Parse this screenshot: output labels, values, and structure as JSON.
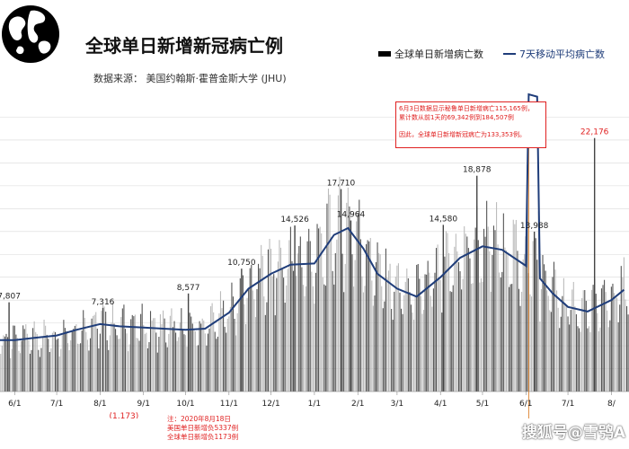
{
  "header": {
    "title": "全球单日新增新冠病亡例",
    "source": "数据来源：  美国约翰斯·霍普金斯大学 (JHU)"
  },
  "legend": {
    "bar_label": "全球单日新增病亡数",
    "line_label": "7天移动平均病亡数"
  },
  "colors": {
    "line": "#1f3d7a",
    "bar_dark": "#555555",
    "bar_light": "#bbbbbb",
    "annotation": "#e02020"
  },
  "note_box": {
    "line1": "6月3日数据显示秘鲁单日新增病亡115,165例，",
    "line2": "累计数从前1天的69,342例到184,507例",
    "line3": "因此，全球单日新增新冠病亡为133,353例。"
  },
  "footnote": {
    "line1": "注：2020年8月18日",
    "line2": "美国单日新增负5337例",
    "line3": "全球单日新增负1173例"
  },
  "watermark": "搜狐号@雪鸮A",
  "chart_data": {
    "type": "bar",
    "secondary_series": "line",
    "series": [
      {
        "name": "全球单日新增病亡数",
        "kind": "bar"
      },
      {
        "name": "7天移动平均病亡数",
        "kind": "line"
      }
    ],
    "x_tick_labels": [
      "6/1",
      "7/1",
      "8/1",
      "9/1",
      "10/1",
      "11/1",
      "12/1",
      "1/1",
      "2/1",
      "3/1",
      "4/1",
      "5/1",
      "6/1",
      "7/1",
      "8/1"
    ],
    "x_tick_labels_shown": [
      "/1",
      "6/1",
      "7/1",
      "8/1",
      "9/1",
      "10/1",
      "11/1",
      "12/1",
      "1/1",
      "2/1",
      "3/1",
      "4/1",
      "5/1",
      "6/1",
      "7/1",
      "8/"
    ],
    "period": "2020-05 to 2021-08 (approx.)",
    "ylim": [
      -2000,
      26000
    ],
    "grid": true,
    "legend_position": "top-right",
    "data_labels": [
      {
        "label": "7,807",
        "x": "2020-05-28",
        "value": 7807
      },
      {
        "label": "7,316",
        "x": "2020-08-03",
        "value": 7316
      },
      {
        "label": "(1,173)",
        "x": "2020-08-18",
        "value": -1173
      },
      {
        "label": "8,577",
        "x": "2020-10-03",
        "value": 8577
      },
      {
        "label": "10,750",
        "x": "2020-11-10",
        "value": 10750
      },
      {
        "label": "14,526",
        "x": "2020-12-18",
        "value": 14526
      },
      {
        "label": "17,710",
        "x": "2021-01-20",
        "value": 17710
      },
      {
        "label": "14,964",
        "x": "2021-01-27",
        "value": 14964
      },
      {
        "label": "14,580",
        "x": "2021-04-03",
        "value": 14580
      },
      {
        "label": "18,878",
        "x": "2021-04-27",
        "value": 18878
      },
      {
        "label": "13,988",
        "x": "2021-06-07",
        "value": 13988
      },
      {
        "label": "22,176",
        "x": "2021-07-20",
        "value": 22176
      }
    ],
    "moving_average": [
      {
        "date": "2020-05-01",
        "value": 5500
      },
      {
        "date": "2020-05-15",
        "value": 4500
      },
      {
        "date": "2020-06-01",
        "value": 4500
      },
      {
        "date": "2020-06-15",
        "value": 4700
      },
      {
        "date": "2020-07-01",
        "value": 4900
      },
      {
        "date": "2020-07-15",
        "value": 5400
      },
      {
        "date": "2020-08-01",
        "value": 5900
      },
      {
        "date": "2020-08-15",
        "value": 5700
      },
      {
        "date": "2020-09-01",
        "value": 5600
      },
      {
        "date": "2020-09-15",
        "value": 5500
      },
      {
        "date": "2020-10-01",
        "value": 5400
      },
      {
        "date": "2020-10-15",
        "value": 5500
      },
      {
        "date": "2020-11-01",
        "value": 6900
      },
      {
        "date": "2020-11-15",
        "value": 9000
      },
      {
        "date": "2020-12-01",
        "value": 10300
      },
      {
        "date": "2020-12-15",
        "value": 11100
      },
      {
        "date": "2021-01-01",
        "value": 11200
      },
      {
        "date": "2021-01-15",
        "value": 13700
      },
      {
        "date": "2021-01-25",
        "value": 14300
      },
      {
        "date": "2021-02-05",
        "value": 12500
      },
      {
        "date": "2021-02-15",
        "value": 10300
      },
      {
        "date": "2021-03-01",
        "value": 9000
      },
      {
        "date": "2021-03-15",
        "value": 8300
      },
      {
        "date": "2021-04-01",
        "value": 10000
      },
      {
        "date": "2021-04-15",
        "value": 11700
      },
      {
        "date": "2021-05-01",
        "value": 12700
      },
      {
        "date": "2021-05-15",
        "value": 12400
      },
      {
        "date": "2021-06-01",
        "value": 11000
      },
      {
        "date": "2021-06-03",
        "value": 26000
      },
      {
        "date": "2021-06-09",
        "value": 25800
      },
      {
        "date": "2021-06-11",
        "value": 9900
      },
      {
        "date": "2021-06-20",
        "value": 8600
      },
      {
        "date": "2021-07-01",
        "value": 7400
      },
      {
        "date": "2021-07-15",
        "value": 7000
      },
      {
        "date": "2021-08-01",
        "value": 8000
      },
      {
        "date": "2021-08-10",
        "value": 8900
      }
    ],
    "annotation": "6月3日数据显示秘鲁单日新增病亡115,165例，累计数从前1天的69,342例到184,507例。因此，全球单日新增新冠病亡为133,353例。"
  }
}
